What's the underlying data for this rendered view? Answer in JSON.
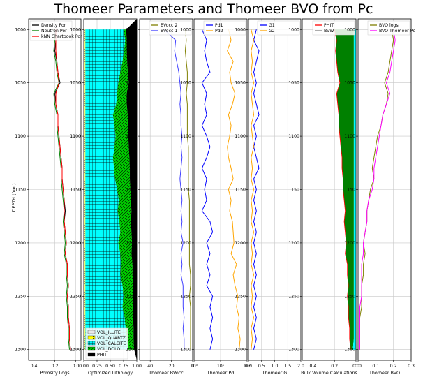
{
  "chart_data": {
    "title": "Thomeer Parameters and Thomeer BVO from Pc",
    "ylabel": "DEPTH (feet)",
    "ylim": [
      1310,
      990
    ],
    "y_ticks": [
      "1000",
      "1050",
      "1100",
      "1150",
      "1200",
      "1250",
      "1300"
    ],
    "depth": [
      1000,
      1010,
      1020,
      1030,
      1040,
      1050,
      1060,
      1070,
      1080,
      1090,
      1100,
      1110,
      1120,
      1130,
      1140,
      1150,
      1160,
      1170,
      1180,
      1190,
      1200,
      1210,
      1220,
      1230,
      1240,
      1250,
      1260,
      1270,
      1280,
      1290,
      1300
    ],
    "tracks": [
      {
        "type": "line",
        "xlabel": "Porosity Logs",
        "xlim": [
          0.45,
          -0.05
        ],
        "x_ticks": [
          "0.4",
          "0.2",
          "0.0"
        ],
        "legend": "top-left",
        "series": [
          {
            "name": "Density Por",
            "color": "#000000",
            "values": [
              0.2,
              0.19,
              0.2,
              0.18,
              0.17,
              0.15,
              0.2,
              0.19,
              0.17,
              0.17,
              0.16,
              0.15,
              0.14,
              0.13,
              0.13,
              0.12,
              0.11,
              0.1,
              0.11,
              0.1,
              0.09,
              0.1,
              0.08,
              0.08,
              0.07,
              0.08,
              0.07,
              0.07,
              0.06,
              0.06,
              0.05
            ]
          },
          {
            "name": "Neutron Por",
            "color": "#008000",
            "values": [
              0.21,
              0.2,
              0.21,
              0.19,
              0.18,
              0.16,
              0.21,
              0.2,
              0.18,
              0.18,
              0.17,
              0.16,
              0.15,
              0.14,
              0.14,
              0.13,
              0.12,
              0.11,
              0.12,
              0.11,
              0.1,
              0.11,
              0.09,
              0.09,
              0.08,
              0.09,
              0.08,
              0.08,
              0.07,
              0.07,
              0.06
            ]
          },
          {
            "name": "kNN Chartbook Por",
            "color": "#ff0000",
            "values": [
              0.19,
              0.19,
              0.19,
              0.18,
              0.17,
              0.16,
              0.19,
              0.19,
              0.17,
              0.17,
              0.16,
              0.15,
              0.14,
              0.13,
              0.13,
              0.12,
              0.11,
              0.11,
              0.11,
              0.1,
              0.09,
              0.1,
              0.08,
              0.08,
              0.07,
              0.08,
              0.07,
              0.07,
              0.06,
              0.06,
              0.05
            ]
          }
        ]
      },
      {
        "type": "area",
        "xlabel": "Optimized Lithology",
        "xlim": [
          0,
          1
        ],
        "x_ticks": [
          "0.00",
          "0.25",
          "0.50",
          "0.75",
          "1.00"
        ],
        "legend": "bottom-left",
        "series": [
          {
            "name": "VOL_ILLITE",
            "color": "#e8e8e8",
            "values": [
              0.02,
              0.02,
              0.02,
              0.02,
              0.02,
              0.02,
              0.02,
              0.02,
              0.02,
              0.02,
              0.02,
              0.02,
              0.02,
              0.02,
              0.02,
              0.02,
              0.02,
              0.02,
              0.02,
              0.02,
              0.02,
              0.02,
              0.02,
              0.02,
              0.02,
              0.02,
              0.02,
              0.02,
              0.02,
              0.02,
              0.02
            ]
          },
          {
            "name": "VOL_QUARTZ",
            "color": "#ffff00",
            "values": [
              0.01,
              0.01,
              0.01,
              0.01,
              0.01,
              0.01,
              0.01,
              0.01,
              0.01,
              0.01,
              0.01,
              0.01,
              0.01,
              0.01,
              0.01,
              0.01,
              0.01,
              0.01,
              0.01,
              0.01,
              0.01,
              0.01,
              0.01,
              0.01,
              0.01,
              0.01,
              0.01,
              0.01,
              0.01,
              0.01,
              0.01
            ]
          },
          {
            "name": "VOL_CALCITE",
            "color": "#00ffff",
            "values": [
              0.72,
              0.75,
              0.73,
              0.7,
              0.66,
              0.62,
              0.6,
              0.58,
              0.52,
              0.55,
              0.57,
              0.55,
              0.52,
              0.54,
              0.56,
              0.6,
              0.63,
              0.61,
              0.64,
              0.66,
              0.62,
              0.66,
              0.67,
              0.66,
              0.7,
              0.72,
              0.7,
              0.74,
              0.76,
              0.78,
              0.8
            ]
          },
          {
            "name": "VOL_DOLO",
            "color": "#00cc00",
            "values": [
              0.05,
              0.03,
              0.05,
              0.09,
              0.14,
              0.2,
              0.18,
              0.2,
              0.28,
              0.26,
              0.24,
              0.27,
              0.31,
              0.3,
              0.28,
              0.25,
              0.23,
              0.26,
              0.22,
              0.21,
              0.26,
              0.21,
              0.22,
              0.23,
              0.2,
              0.17,
              0.2,
              0.16,
              0.15,
              0.13,
              0.12
            ]
          },
          {
            "name": "PHIT",
            "color": "#000000",
            "values": [
              0.2,
              0.19,
              0.19,
              0.18,
              0.17,
              0.15,
              0.19,
              0.19,
              0.17,
              0.16,
              0.16,
              0.15,
              0.14,
              0.13,
              0.13,
              0.12,
              0.11,
              0.1,
              0.11,
              0.1,
              0.09,
              0.1,
              0.08,
              0.08,
              0.07,
              0.08,
              0.07,
              0.07,
              0.06,
              0.06,
              0.05
            ]
          }
        ]
      },
      {
        "type": "line",
        "xlabel": "Thomeer BVocc",
        "xlim": [
          50,
          0
        ],
        "x_ticks": [
          "40",
          "20",
          "0"
        ],
        "legend": "top-right",
        "series": [
          {
            "name": "BVocc 2",
            "color": "#808000",
            "values": [
              7,
              6,
              7,
              6,
              5,
              5,
              6,
              5,
              5,
              5,
              5,
              4,
              4,
              4,
              4,
              4,
              3,
              3,
              3,
              3,
              3,
              3,
              3,
              2,
              2,
              3,
              2,
              2,
              2,
              2,
              2
            ]
          },
          {
            "name": "BVocc 1",
            "color": "#4040ff",
            "values": [
              27,
              16,
              17,
              15,
              13,
              12,
              11,
              12,
              11,
              11,
              10,
              11,
              10,
              11,
              12,
              11,
              10,
              11,
              10,
              11,
              9,
              11,
              10,
              11,
              9,
              9,
              9,
              8,
              9,
              8,
              8
            ]
          }
        ]
      },
      {
        "type": "line",
        "xlabel": "Thomeer Pd",
        "xscale": "log",
        "xlim": [
          1,
          100
        ],
        "x_ticks": [
          "10⁰",
          "10¹",
          "10²"
        ],
        "legend": "top-right",
        "series": [
          {
            "name": "Pd1",
            "color": "#0000ff",
            "values": [
              2,
              3,
              2.5,
              3,
              4,
              2,
              3,
              2.5,
              3,
              2,
              3,
              4,
              3,
              2,
              3,
              2.5,
              3,
              2,
              4,
              5,
              3,
              4,
              3,
              4,
              3,
              5,
              4,
              5,
              4,
              5,
              4
            ]
          },
          {
            "name": "Pd2",
            "color": "#ffa500",
            "values": [
              20,
              25,
              18,
              30,
              22,
              25,
              35,
              28,
              20,
              25,
              22,
              18,
              20,
              25,
              30,
              20,
              25,
              22,
              28,
              30,
              32,
              25,
              40,
              30,
              35,
              45,
              40,
              50,
              45,
              55,
              50
            ]
          }
        ]
      },
      {
        "type": "line",
        "xlabel": "Thomeer G",
        "xlim": [
          0,
          2
        ],
        "x_ticks": [
          "0.0",
          "0.5",
          "1.0",
          "1.5",
          "2.0"
        ],
        "legend": "top-right",
        "series": [
          {
            "name": "G1",
            "color": "#0000ff",
            "values": [
              0.3,
              0.2,
              0.4,
              0.3,
              0.2,
              0.3,
              0.2,
              0.3,
              0.4,
              0.2,
              0.3,
              0.2,
              0.3,
              0.4,
              0.2,
              0.3,
              0.2,
              0.3,
              0.2,
              0.3,
              0.2,
              0.3,
              0.2,
              0.3,
              0.2,
              0.3,
              0.2,
              0.3,
              0.2,
              0.3,
              0.2
            ]
          },
          {
            "name": "G2",
            "color": "#ffa500",
            "values": [
              0.1,
              0.2,
              0.1,
              0.15,
              0.1,
              0.2,
              0.1,
              0.15,
              0.2,
              0.1,
              0.15,
              0.2,
              0.1,
              0.15,
              0.1,
              0.2,
              0.1,
              0.15,
              0.1,
              0.2,
              0.1,
              0.15,
              0.1,
              0.2,
              0.1,
              0.15,
              0.1,
              0.2,
              0.1,
              0.15,
              0.1
            ]
          }
        ]
      },
      {
        "type": "area",
        "xlabel": "Bulk Volume Calculations",
        "xlim": [
          0.5,
          0
        ],
        "x_ticks": [
          "0.4",
          "0.2",
          "0.0"
        ],
        "legend": "top-right",
        "series": [
          {
            "name": "PHIT",
            "color": "#ff0000",
            "values": [
              0.2,
              0.18,
              0.19,
              0.18,
              0.17,
              0.15,
              0.18,
              0.17,
              0.16,
              0.16,
              0.15,
              0.14,
              0.13,
              0.13,
              0.12,
              0.12,
              0.11,
              0.1,
              0.11,
              0.1,
              0.09,
              0.1,
              0.08,
              0.08,
              0.07,
              0.08,
              0.07,
              0.07,
              0.06,
              0.06,
              0.05
            ]
          },
          {
            "name": "BVW",
            "color": "#808080",
            "values": [
              0.02,
              0.02,
              0.02,
              0.02,
              0.02,
              0.02,
              0.02,
              0.02,
              0.02,
              0.02,
              0.02,
              0.02,
              0.02,
              0.02,
              0.02,
              0.02,
              0.02,
              0.02,
              0.02,
              0.02,
              0.02,
              0.02,
              0.02,
              0.02,
              0.02,
              0.02,
              0.02,
              0.02,
              0.02,
              0.02,
              0.03
            ]
          }
        ]
      },
      {
        "type": "line",
        "xlabel": "Thomeer BVO",
        "xlim": [
          0,
          0.3
        ],
        "x_ticks": [
          "0.0",
          "0.1",
          "0.2",
          "0.3"
        ],
        "legend": "top-right",
        "series": [
          {
            "name": "BVO logs",
            "color": "#808000",
            "values": [
              0.19,
              0.2,
              0.19,
              0.18,
              0.17,
              0.15,
              0.17,
              0.16,
              0.14,
              0.13,
              0.11,
              0.1,
              0.09,
              0.08,
              0.09,
              0.07,
              0.06,
              0.05,
              0.05,
              0.04,
              0.03,
              0.04,
              0.03,
              0.03,
              0.02,
              0.02,
              0.02,
              0.01,
              0.01,
              0.01,
              0.01
            ]
          },
          {
            "name": "BVO Thomeer Pc",
            "color": "#ff00ff",
            "values": [
              0.2,
              0.21,
              0.2,
              0.19,
              0.18,
              0.16,
              0.18,
              0.16,
              0.14,
              0.13,
              0.12,
              0.11,
              0.1,
              0.09,
              0.09,
              0.08,
              0.06,
              0.05,
              0.05,
              0.04,
              0.03,
              0.03,
              0.02,
              0.02,
              0.02,
              0.02,
              0.01,
              0.01,
              0.01,
              0.01,
              0.01
            ]
          }
        ]
      }
    ]
  }
}
